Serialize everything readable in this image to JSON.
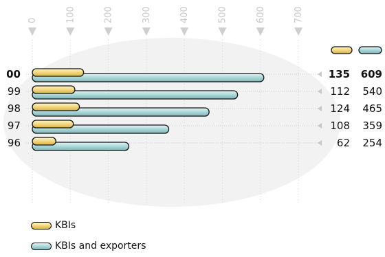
{
  "chart_data": {
    "type": "bar",
    "orientation": "horizontal",
    "xlim": [
      0,
      700
    ],
    "x_ticks": [
      0,
      100,
      200,
      300,
      400,
      500,
      600,
      700
    ],
    "x_tick_labels": [
      "0",
      "100",
      "200",
      "300",
      "400",
      "500",
      "600",
      "700"
    ],
    "categories": [
      "00",
      "99",
      "98",
      "97",
      "96"
    ],
    "bold_category": "00",
    "series": [
      {
        "name": "KBIs",
        "values": [
          135,
          112,
          124,
          108,
          62
        ],
        "color": "#f2d77e"
      },
      {
        "name": "KBIs and exporters",
        "values": [
          609,
          540,
          465,
          359,
          254
        ],
        "color": "#a9d7d9"
      }
    ],
    "grid": true,
    "legend_position": "bottom-left"
  },
  "legend": {
    "items": [
      {
        "label": "KBIs",
        "color": "#f2d77e"
      },
      {
        "label": "KBIs and exporters",
        "color": "#a9d7d9"
      }
    ]
  }
}
